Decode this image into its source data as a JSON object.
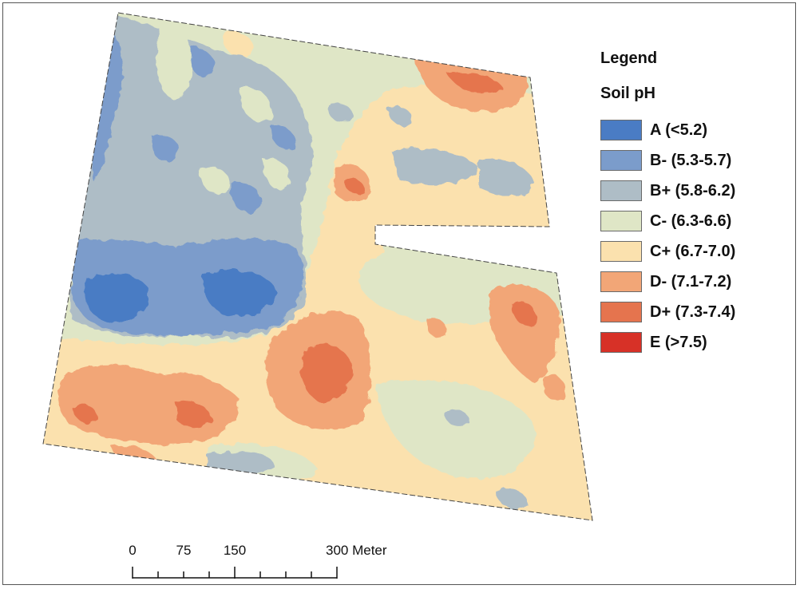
{
  "legend": {
    "title": "Legend",
    "subtitle": "Soil pH",
    "classes": [
      {
        "label": "A (<5.2)",
        "color": "#4a7cc4"
      },
      {
        "label": "B- (5.3-5.7)",
        "color": "#7b9ccb"
      },
      {
        "label": "B+ (5.8-6.2)",
        "color": "#aebdc6"
      },
      {
        "label": "C- (6.3-6.6)",
        "color": "#dfe6c6"
      },
      {
        "label": "C+ (6.7-7.0)",
        "color": "#fbe1ae"
      },
      {
        "label": "D- (7.1-7.2)",
        "color": "#f2a677"
      },
      {
        "label": "D+ (7.3-7.4)",
        "color": "#e5744e"
      },
      {
        "label": "E (>7.5)",
        "color": "#d73127"
      }
    ]
  },
  "scale_bar": {
    "ticks": [
      "0",
      "75",
      "150",
      "300 Meter"
    ]
  }
}
